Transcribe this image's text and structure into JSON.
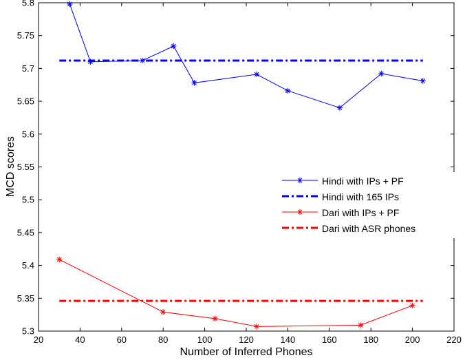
{
  "chart_data": {
    "type": "line",
    "xlabel": "Number of Inferred Phones",
    "ylabel": "MCD scores",
    "xlim": [
      20,
      220
    ],
    "ylim": [
      5.3,
      5.8
    ],
    "xticks": [
      "20",
      "40",
      "60",
      "80",
      "100",
      "120",
      "140",
      "160",
      "180",
      "200",
      "220"
    ],
    "yticks": [
      "5.3",
      "5.35",
      "5.4",
      "5.45",
      "5.5",
      "5.55",
      "5.6",
      "5.65",
      "5.7",
      "5.75",
      "5.8"
    ],
    "grid": false,
    "legend_position": "center-right",
    "series": [
      {
        "name": "Hindi with IPs + PF",
        "color": "#0000ff",
        "style": "solid-star",
        "x": [
          35,
          45,
          70,
          85,
          95,
          125,
          140,
          165,
          185,
          205
        ],
        "y": [
          5.798,
          5.71,
          5.712,
          5.734,
          5.678,
          5.691,
          5.666,
          5.64,
          5.692,
          5.681
        ]
      },
      {
        "name": "Hindi with 165 IPs",
        "color": "#0000ff",
        "style": "dashdot",
        "x": [
          30,
          205
        ],
        "y": [
          5.712,
          5.712
        ]
      },
      {
        "name": "Dari with IPs + PF",
        "color": "#ff0000",
        "style": "solid-star",
        "x": [
          30,
          80,
          105,
          125,
          175,
          200
        ],
        "y": [
          5.409,
          5.329,
          5.319,
          5.307,
          5.309,
          5.339
        ]
      },
      {
        "name": "Dari with ASR phones",
        "color": "#ff0000",
        "style": "dashdot",
        "x": [
          30,
          205
        ],
        "y": [
          5.346,
          5.346
        ]
      }
    ]
  }
}
